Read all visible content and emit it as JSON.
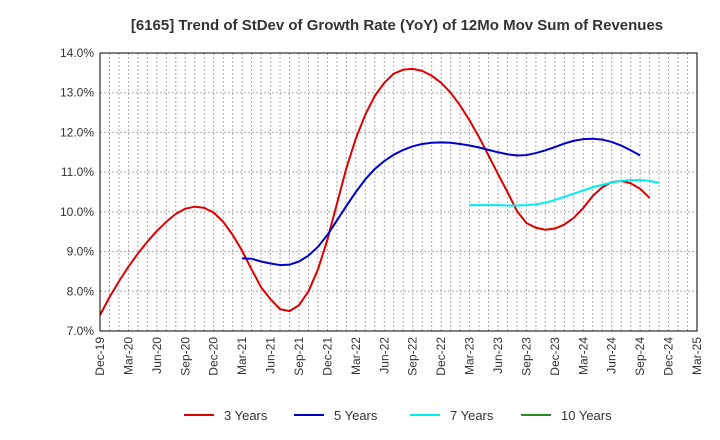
{
  "chart_data": {
    "type": "line",
    "title": "[6165]  Trend of StDev of Growth Rate (YoY) of 12Mo Mov Sum of Revenues",
    "xlabel": "",
    "ylabel": "",
    "ylim": [
      7.0,
      14.0
    ],
    "y_ticks": [
      "7.0%",
      "8.0%",
      "9.0%",
      "10.0%",
      "11.0%",
      "12.0%",
      "13.0%",
      "14.0%"
    ],
    "x_ticks": [
      "Dec-19",
      "Mar-20",
      "Jun-20",
      "Sep-20",
      "Dec-20",
      "Mar-21",
      "Jun-21",
      "Sep-21",
      "Dec-21",
      "Mar-22",
      "Jun-22",
      "Sep-22",
      "Dec-22",
      "Mar-23",
      "Jun-23",
      "Sep-23",
      "Dec-23",
      "Mar-24",
      "Jun-24",
      "Sep-24",
      "Dec-24",
      "Mar-25"
    ],
    "x_start": "Dec-19",
    "x_months_total": 63,
    "grid": true,
    "legend_position": "bottom",
    "series": [
      {
        "name": "3 Years",
        "color": "#dd0000",
        "start_index": 0,
        "values": [
          7.4,
          7.85,
          8.25,
          8.62,
          8.95,
          9.25,
          9.52,
          9.75,
          9.95,
          10.08,
          10.13,
          10.1,
          9.98,
          9.75,
          9.42,
          9.02,
          8.55,
          8.1,
          7.8,
          7.55,
          7.5,
          7.65,
          8.0,
          8.55,
          9.3,
          10.2,
          11.1,
          11.85,
          12.45,
          12.92,
          13.25,
          13.48,
          13.58,
          13.6,
          13.55,
          13.43,
          13.25,
          13.0,
          12.68,
          12.3,
          11.88,
          11.42,
          10.95,
          10.5,
          10.02,
          9.72,
          9.6,
          9.55,
          9.58,
          9.68,
          9.85,
          10.1,
          10.4,
          10.62,
          10.75,
          10.78,
          10.72,
          10.58,
          10.35
        ]
      },
      {
        "name": "5 Years",
        "color": "#0000cc",
        "start_index": 15,
        "values": [
          8.83,
          8.82,
          8.75,
          8.7,
          8.66,
          8.67,
          8.75,
          8.9,
          9.12,
          9.42,
          9.78,
          10.15,
          10.5,
          10.82,
          11.08,
          11.28,
          11.44,
          11.56,
          11.65,
          11.71,
          11.74,
          11.75,
          11.74,
          11.71,
          11.67,
          11.62,
          11.56,
          11.5,
          11.45,
          11.42,
          11.43,
          11.48,
          11.55,
          11.63,
          11.72,
          11.79,
          11.83,
          11.84,
          11.82,
          11.76,
          11.67,
          11.55,
          11.42
        ]
      },
      {
        "name": "7 Years",
        "color": "#00eeee",
        "start_index": 39,
        "values": [
          10.17,
          10.17,
          10.17,
          10.17,
          10.16,
          10.16,
          10.17,
          10.19,
          10.23,
          10.3,
          10.38,
          10.46,
          10.54,
          10.62,
          10.68,
          10.74,
          10.78,
          10.8,
          10.8,
          10.78,
          10.73
        ]
      },
      {
        "name": "10 Years",
        "color": "#228b22",
        "start_index": 0,
        "values": []
      }
    ]
  }
}
